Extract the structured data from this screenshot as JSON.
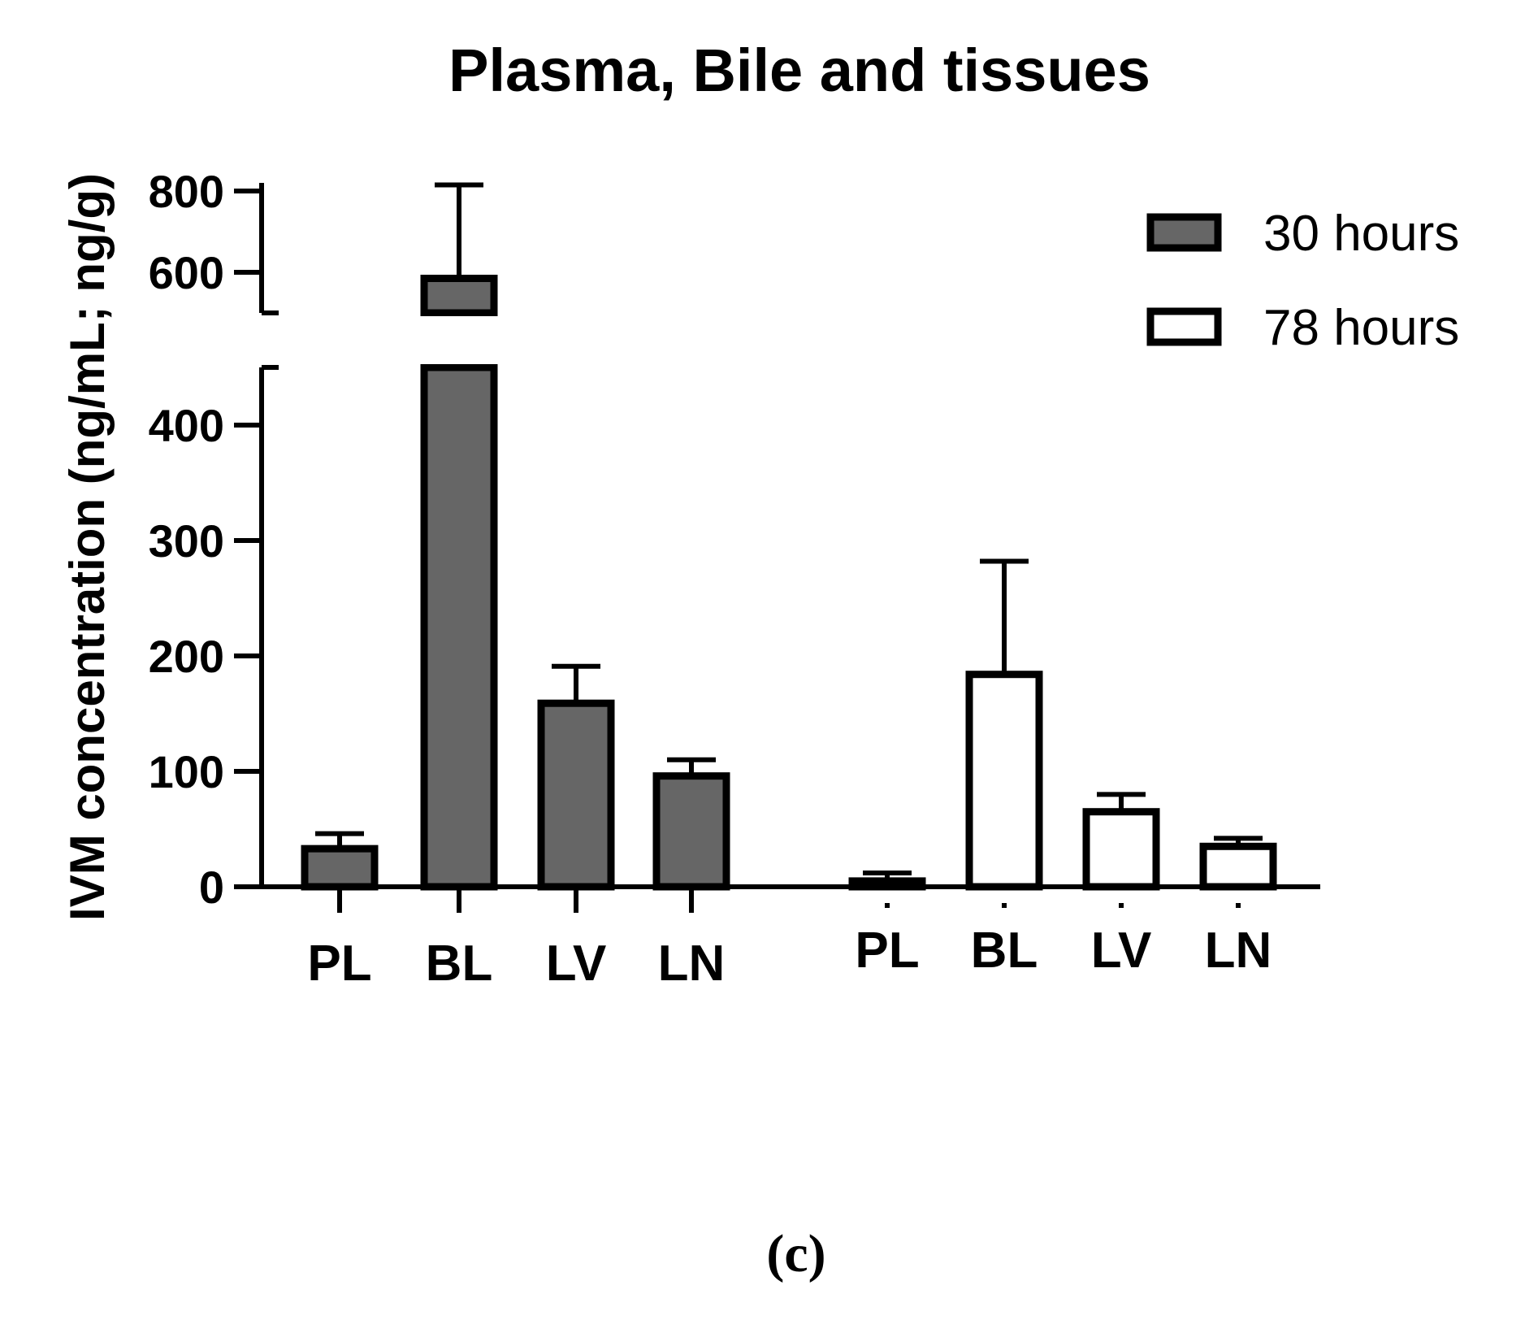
{
  "chart_data": {
    "type": "bar",
    "title": "Plasma, Bile and tissues",
    "ylabel": "IVM concentration (ng/mL; ng/g)",
    "xlabel": "",
    "panel_label": "(c)",
    "categories": [
      "PL",
      "BL",
      "LV",
      "LN"
    ],
    "y_axis": {
      "lower_segment": {
        "range": [
          0,
          450
        ],
        "ticks": [
          0,
          100,
          200,
          300,
          400
        ]
      },
      "upper_segment": {
        "range": [
          500,
          820
        ],
        "ticks": [
          600,
          800
        ]
      },
      "break": true
    },
    "tick_labels": [
      "0",
      "100",
      "200",
      "300",
      "400",
      "600",
      "800"
    ],
    "series": [
      {
        "name": "30 hours",
        "fill": "#666666",
        "values": [
          33,
          585,
          159,
          96
        ],
        "errors": [
          13,
          230,
          32,
          14
        ]
      },
      {
        "name": "78 hours",
        "fill": "#ffffff",
        "values": [
          5,
          184,
          65,
          35
        ],
        "errors": [
          7,
          98,
          15,
          7
        ]
      }
    ],
    "legend_position": "top-right"
  },
  "colors": {
    "stroke": "#000000",
    "series_1": "#666666",
    "series_2": "#ffffff"
  }
}
